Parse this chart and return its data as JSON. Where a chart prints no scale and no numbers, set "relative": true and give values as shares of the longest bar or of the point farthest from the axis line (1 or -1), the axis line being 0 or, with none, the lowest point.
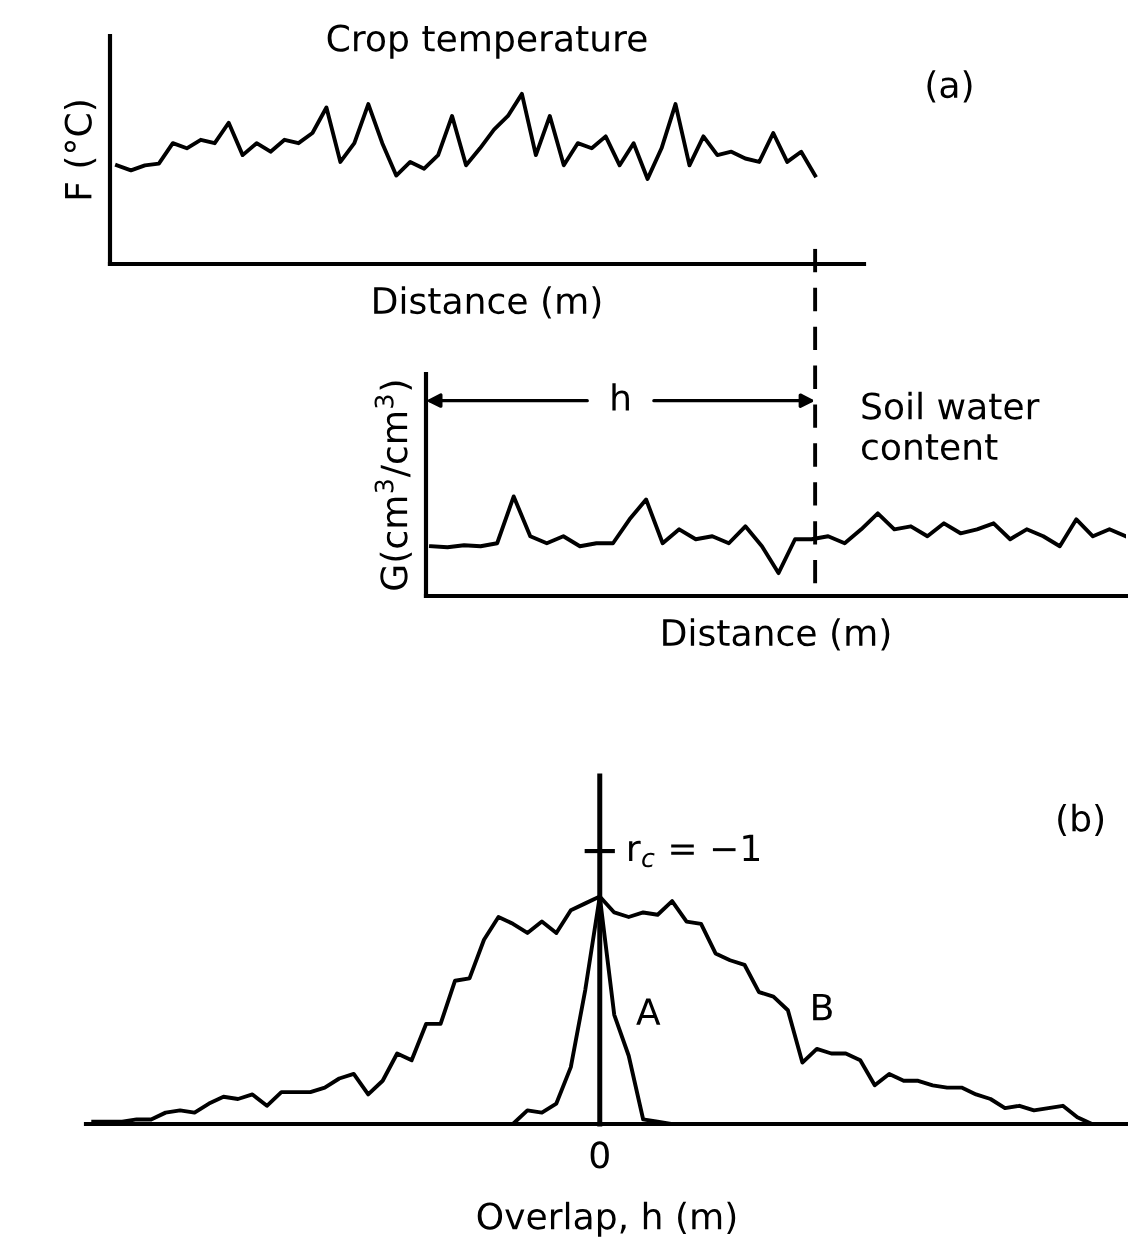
{
  "chart_data": [
    {
      "type": "line",
      "relative": true,
      "xlabel": "Distance (m)",
      "ylabel": "F (°C)",
      "title": "Crop temperature",
      "annotations": [
        "(a)"
      ],
      "categories": [
        null,
        null,
        null,
        null,
        null,
        null,
        null,
        null,
        null,
        null,
        null,
        null,
        null,
        null,
        null,
        null,
        null,
        null,
        null,
        null,
        null,
        null,
        null,
        null,
        null,
        null,
        null,
        null,
        null,
        null,
        null,
        null,
        null,
        null,
        null,
        null,
        null,
        null,
        null,
        null,
        null,
        null,
        null,
        null,
        null,
        null,
        null,
        null,
        null,
        null,
        null,
        null,
        null,
        null
      ],
      "series": [
        {
          "color": "#000000",
          "values": [
            0.58,
            0.55,
            0.58,
            0.59,
            0.71,
            0.68,
            0.73,
            0.71,
            0.83,
            0.64,
            0.71,
            0.66,
            0.73,
            0.71,
            0.77,
            0.92,
            0.6,
            0.71,
            0.94,
            0.71,
            0.52,
            0.6,
            0.56,
            0.64,
            0.87,
            0.58,
            0.68,
            0.79,
            0.87,
            1,
            0.64,
            0.87,
            0.58,
            0.71,
            0.68,
            0.75,
            0.58,
            0.71,
            0.5,
            0.68,
            0.94,
            0.58,
            0.75,
            0.64,
            0.66,
            0.62,
            0.6,
            0.77,
            0.6,
            0.66,
            0.52,
            null,
            null,
            null
          ]
        }
      ]
    },
    {
      "type": "line",
      "relative": true,
      "xlabel": "Distance (m)",
      "ylabel": "G(cm$^{3}$/cm$^{3}$)",
      "annotations": [
        "h",
        "Soil water\ncontent"
      ],
      "categories": [
        null,
        null,
        null,
        null,
        null,
        null,
        null,
        null,
        null,
        null,
        null,
        null,
        null,
        null,
        null,
        null,
        null,
        null,
        null,
        null,
        null,
        null,
        null,
        null,
        null,
        null,
        null,
        null,
        null,
        null,
        null,
        null,
        null,
        null,
        null,
        null,
        null,
        null,
        null,
        null,
        null,
        null,
        null
      ],
      "series": [
        {
          "color": "#000000",
          "values": [
            0.5,
            0.49,
            0.51,
            0.5,
            0.53,
            1,
            0.6,
            0.53,
            0.6,
            0.5,
            0.53,
            0.53,
            0.77,
            0.97,
            0.53,
            0.67,
            0.57,
            0.6,
            0.53,
            0.7,
            0.5,
            0.23,
            0.57,
            0.57,
            0.6,
            0.53,
            0.67,
            0.83,
            0.67,
            0.7,
            0.6,
            0.73,
            0.63,
            0.67,
            0.73,
            0.57,
            0.67,
            0.6,
            0.5,
            0.77,
            0.6,
            0.67,
            0.6
          ]
        }
      ]
    },
    {
      "type": "line",
      "relative": true,
      "xlabel": "Overlap, h (m)",
      "annotations": [
        "(b)",
        "r$_{c}$ = −1",
        "0"
      ],
      "categories": [
        null,
        null,
        null,
        null,
        null,
        null,
        null,
        null,
        null,
        null,
        null,
        null,
        null,
        null,
        null,
        null,
        null,
        null,
        null,
        null,
        null,
        null,
        null,
        null,
        null,
        null,
        null,
        null,
        null,
        null,
        null,
        null,
        null,
        null,
        null,
        null,
        null,
        null,
        null,
        null,
        null,
        null,
        null,
        null,
        null,
        null,
        null,
        null,
        null,
        null,
        null,
        null,
        null,
        null,
        null,
        null,
        null,
        null,
        null,
        null,
        null,
        null,
        null,
        null,
        null,
        null,
        null,
        null,
        null,
        null
      ],
      "series": [
        {
          "name": "B",
          "color": "#000000",
          "values": [
            0.01,
            0.01,
            0.01,
            0.02,
            0.02,
            0.05,
            0.06,
            0.05,
            0.09,
            0.12,
            0.11,
            0.13,
            0.08,
            0.14,
            0.14,
            0.14,
            0.16,
            0.2,
            0.22,
            0.13,
            0.19,
            0.31,
            0.28,
            0.44,
            0.44,
            0.63,
            0.64,
            0.81,
            0.91,
            0.88,
            0.84,
            0.89,
            0.84,
            0.94,
            0.97,
            1,
            0.93,
            0.91,
            0.93,
            0.92,
            0.98,
            0.89,
            0.88,
            0.75,
            0.72,
            0.7,
            0.58,
            0.56,
            0.5,
            0.27,
            0.33,
            0.31,
            0.31,
            0.28,
            0.17,
            0.22,
            0.19,
            0.19,
            0.17,
            0.16,
            0.16,
            0.13,
            0.11,
            0.07,
            0.08,
            0.06,
            0.07,
            0.08,
            0.03,
            0
          ]
        },
        {
          "name": "A",
          "color": "#000000",
          "values": [
            null,
            null,
            null,
            null,
            null,
            null,
            null,
            null,
            null,
            null,
            null,
            null,
            null,
            null,
            null,
            null,
            null,
            null,
            null,
            null,
            null,
            null,
            null,
            null,
            null,
            null,
            null,
            null,
            null,
            0,
            0.06,
            0.05,
            0.09,
            0.25,
            0.59,
            1,
            0.48,
            0.3,
            0.02,
            0.01,
            0,
            null,
            null,
            null,
            null,
            null,
            null,
            null,
            null,
            null,
            null,
            null,
            null,
            null,
            null,
            null,
            null,
            null,
            null,
            null,
            null,
            null,
            null,
            null,
            null,
            null,
            null,
            null,
            null,
            null
          ]
        }
      ]
    }
  ]
}
